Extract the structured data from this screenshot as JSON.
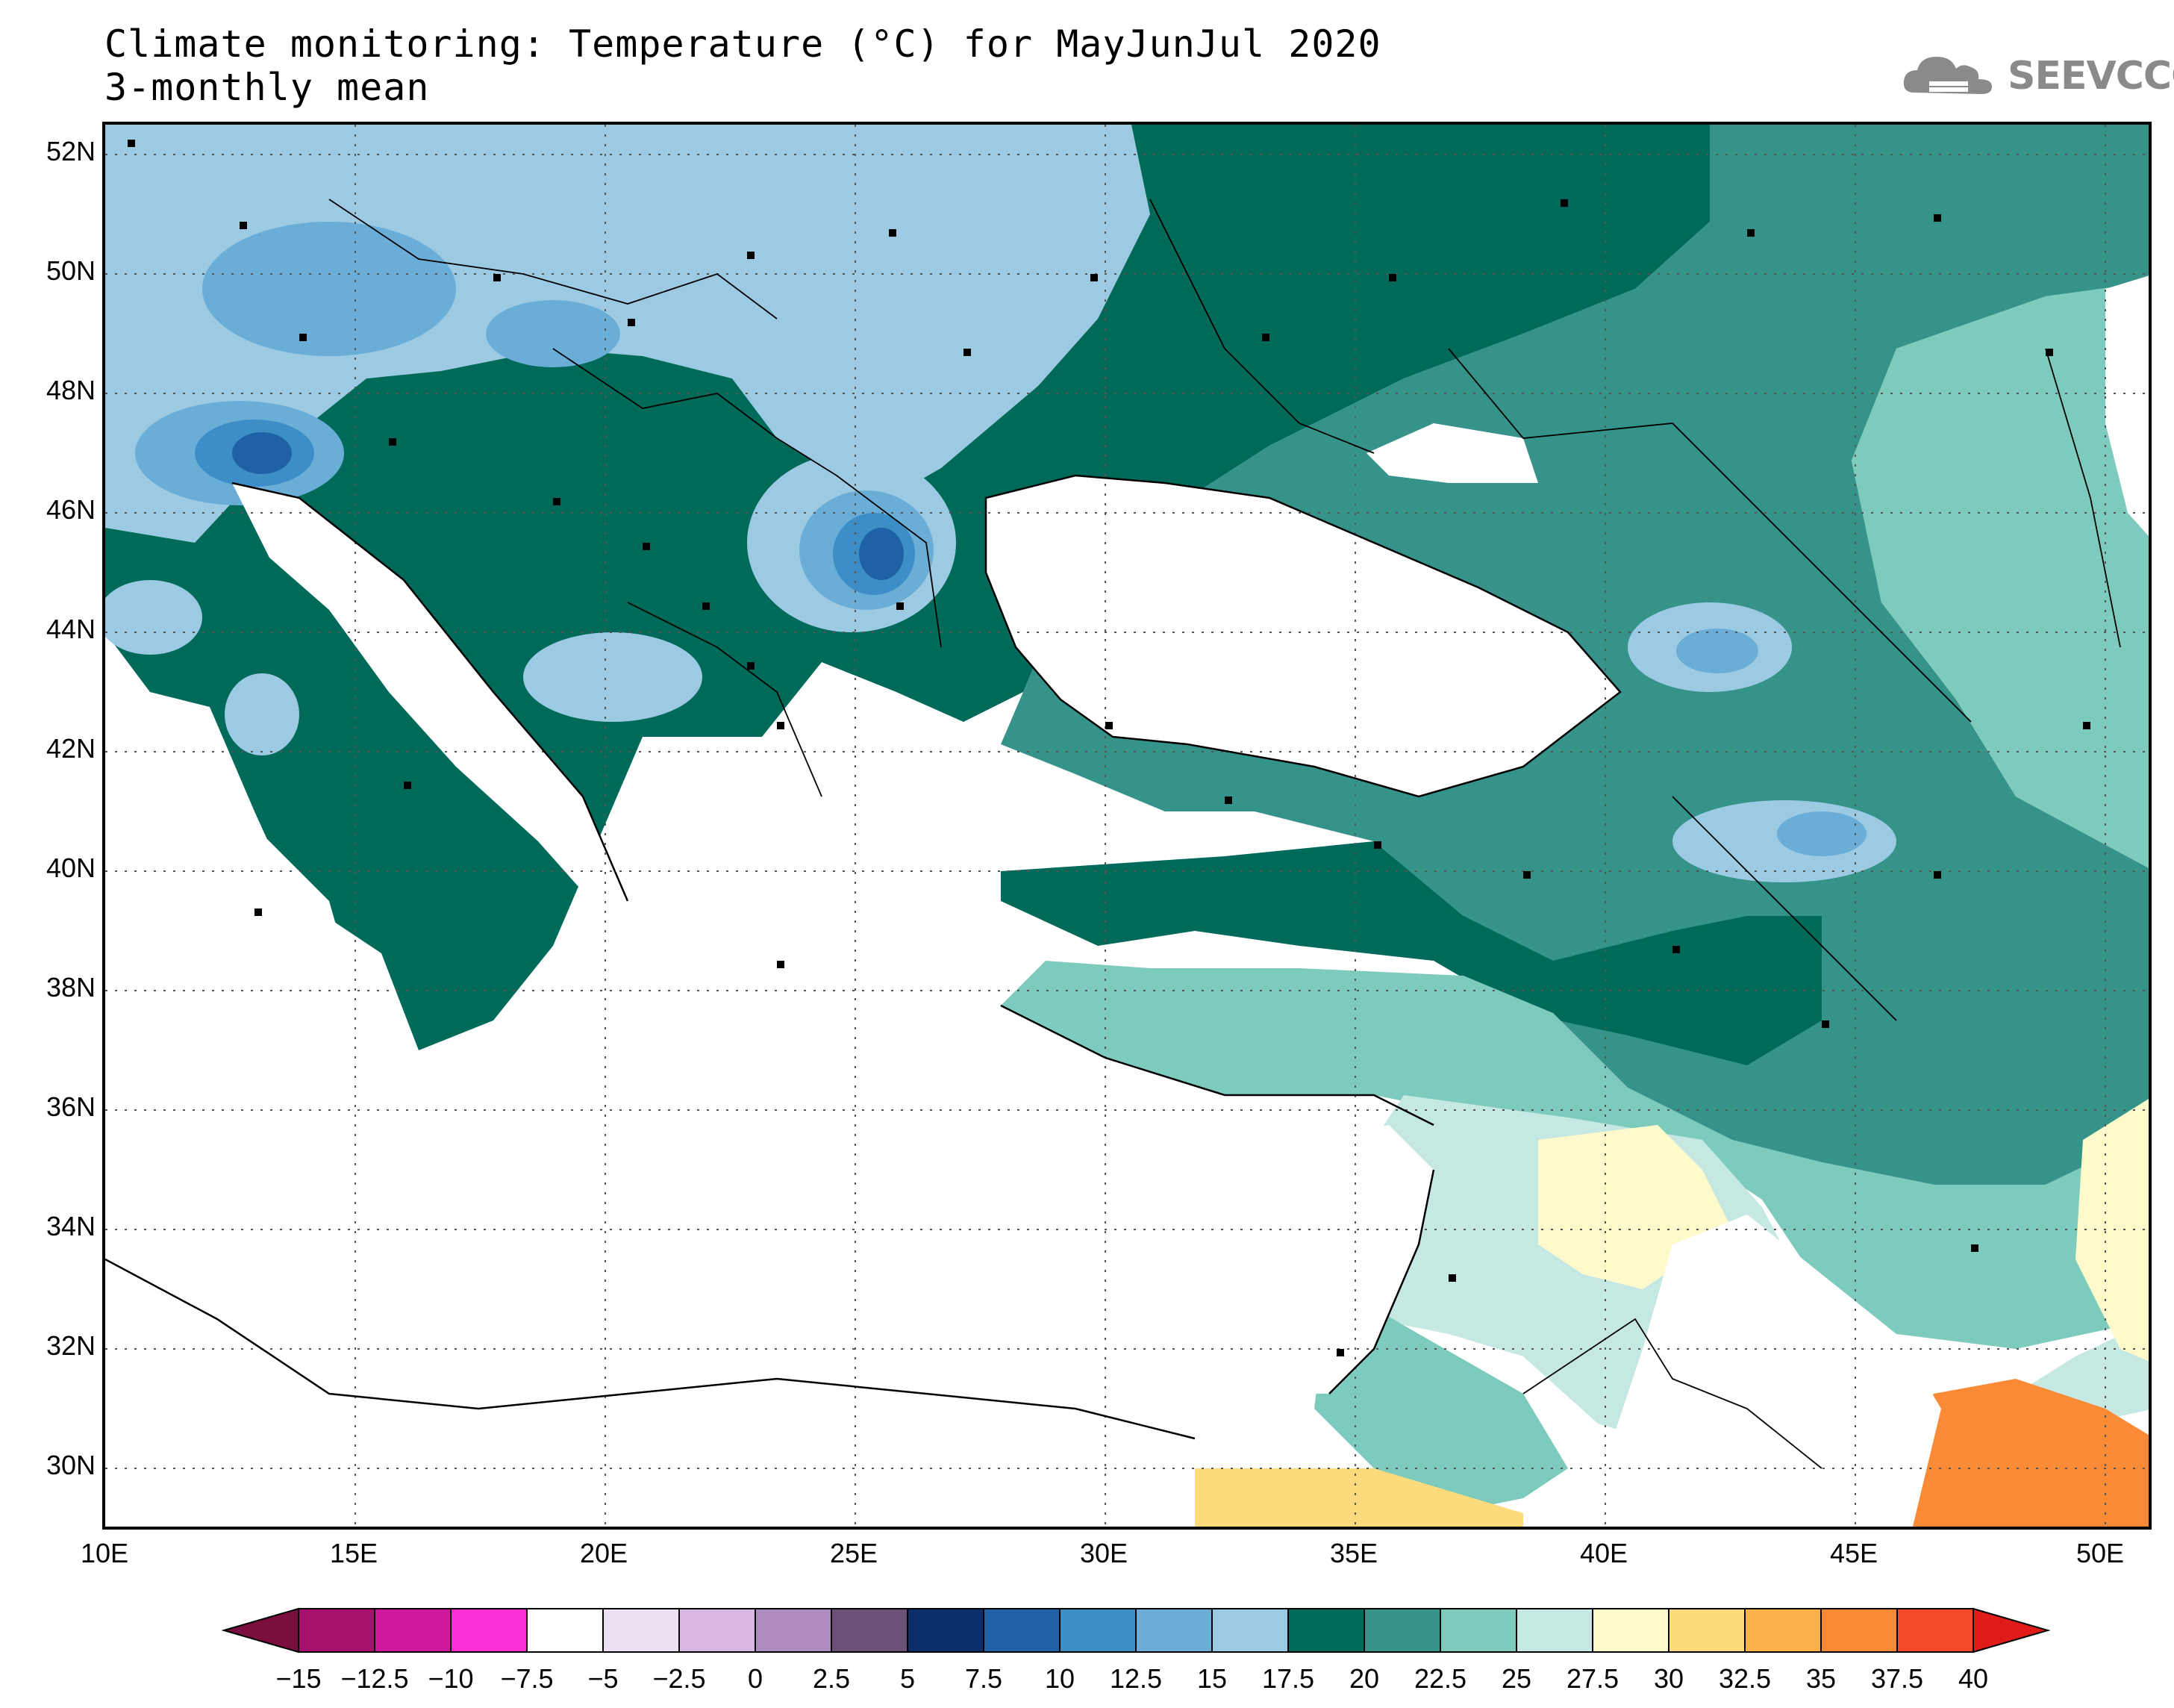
{
  "title_line1": "Climate monitoring: Temperature (°C) for MayJunJul 2020",
  "title_line2": "3-monthly mean",
  "logo_text": "SEEVCCC",
  "logo_icon": "cloud-icon",
  "lat_labels": [
    "52N",
    "50N",
    "48N",
    "46N",
    "44N",
    "42N",
    "40N",
    "38N",
    "36N",
    "34N",
    "32N",
    "30N"
  ],
  "lon_labels": [
    "10E",
    "15E",
    "20E",
    "25E",
    "30E",
    "35E",
    "40E",
    "45E",
    "50E"
  ],
  "colorbar": {
    "labels": [
      "-15",
      "-12.5",
      "-10",
      "-7.5",
      "-5",
      "-2.5",
      "0",
      "2.5",
      "5",
      "7.5",
      "10",
      "12.5",
      "15",
      "17.5",
      "20",
      "22.5",
      "25",
      "27.5",
      "30",
      "32.5",
      "35",
      "37.5",
      "40"
    ],
    "colors": [
      "#7a0e3d",
      "#a8106e",
      "#cf1a9f",
      "#fa2fd5",
      "#ffffff",
      "#ede0f2",
      "#d8b7e2",
      "#ae8cc0",
      "#6d5078",
      "#0c2e6a",
      "#1e62a5",
      "#3d8ec6",
      "#6aaed8",
      "#9ccae3",
      "#006a5a",
      "#35938a",
      "#7ccbbd",
      "#c5e8e2",
      "#fffacc",
      "#fdda7c",
      "#fcb04b",
      "#fb8a36",
      "#f24a2a",
      "#e11a1a"
    ]
  },
  "map_data": {
    "variable": "Temperature (°C)",
    "period": "MayJunJul 2020",
    "statistic": "3-monthly mean",
    "lon_range": [
      10,
      51
    ],
    "lat_range": [
      29,
      52.5
    ],
    "stations_marker": "black-square"
  }
}
